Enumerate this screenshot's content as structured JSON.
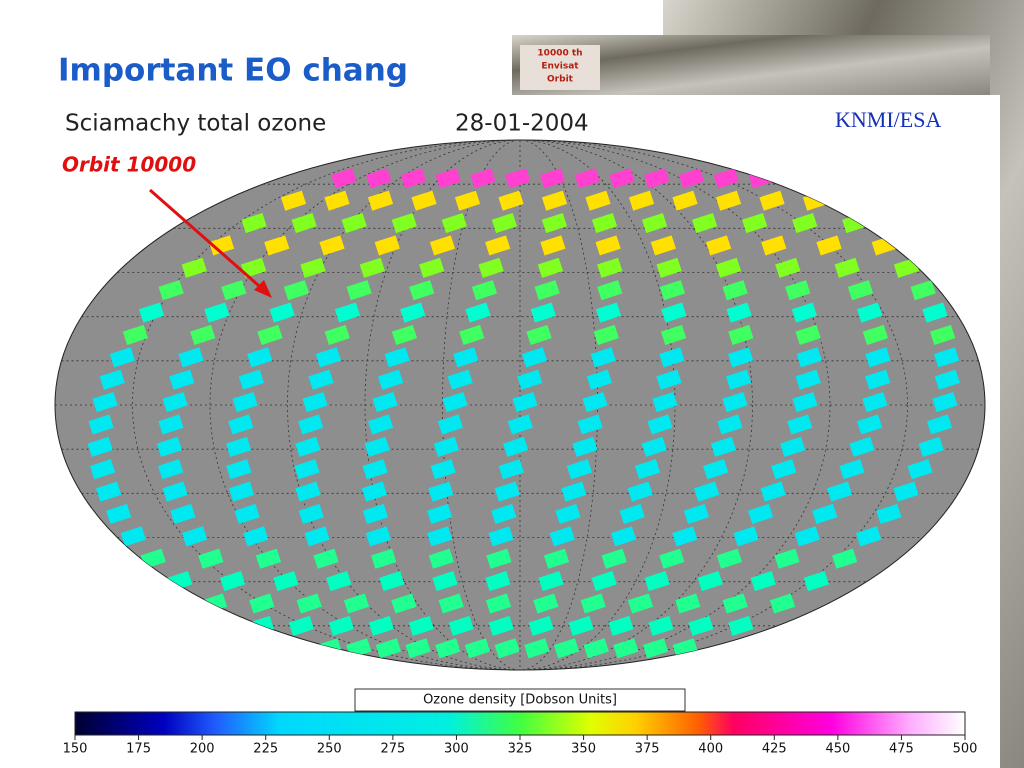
{
  "slide": {
    "title": "Important EO chang"
  },
  "stamp": [
    "10000 th",
    "Envisat",
    "Orbit"
  ],
  "map": {
    "title": "Sciamachy total ozone",
    "date": "28-01-2004",
    "credit": "KNMI/ESA",
    "annotation": "Orbit 10000"
  },
  "colorbar": {
    "label": "Ozone density [Dobson Units]",
    "lim": [
      150,
      500
    ],
    "ticks": [
      150,
      175,
      200,
      225,
      250,
      275,
      300,
      325,
      350,
      375,
      400,
      425,
      450,
      475,
      500
    ]
  }
}
